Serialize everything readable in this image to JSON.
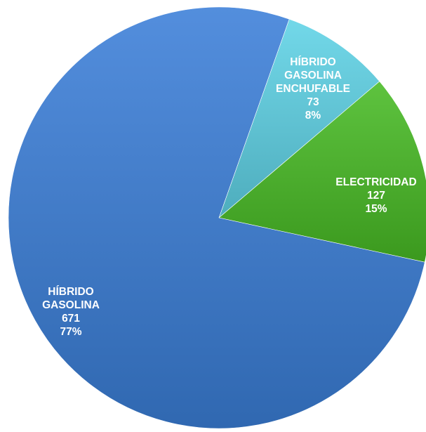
{
  "chart_data": {
    "type": "pie",
    "title": "",
    "slices": [
      {
        "label_lines": [
          "HÍBRIDO",
          "GASOLINA",
          "ENCHUFABLE"
        ],
        "value": 73,
        "value_text": "73",
        "percent_text": "8%",
        "color": "#5fd3e6"
      },
      {
        "label_lines": [
          "ELECTRICIDAD"
        ],
        "value": 127,
        "value_text": "127",
        "percent_text": "15%",
        "color": "#48bb25"
      },
      {
        "label_lines": [
          "HÍBRIDO",
          "GASOLINA"
        ],
        "value": 671,
        "value_text": "671",
        "percent_text": "77%",
        "color": "#3b7fd8"
      }
    ],
    "start_angle_deg": 19.5,
    "direction": "clockwise",
    "legend": "none",
    "data_labels": "inside"
  }
}
